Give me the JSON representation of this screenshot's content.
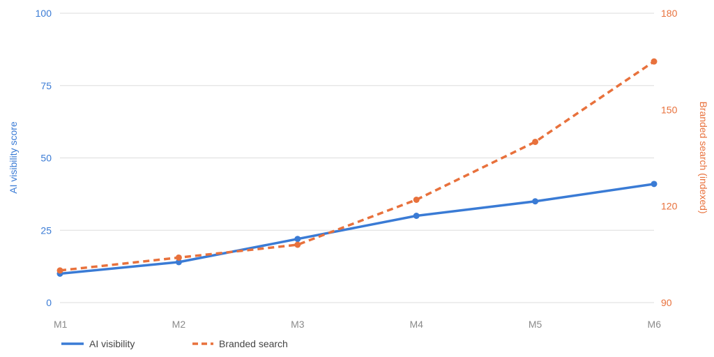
{
  "chart_data": {
    "type": "line",
    "categories": [
      "M1",
      "M2",
      "M3",
      "M4",
      "M5",
      "M6"
    ],
    "series": [
      {
        "name": "AI visibility",
        "axis": "left",
        "style": "solid",
        "color": "#3a7bd5",
        "values": [
          10,
          14,
          22,
          30,
          35,
          41
        ]
      },
      {
        "name": "Branded search",
        "axis": "right",
        "style": "dashed",
        "color": "#e8713c",
        "values": [
          100,
          104,
          108,
          122,
          140,
          165
        ]
      }
    ],
    "y_left": {
      "label": "AI visibility score",
      "range": [
        0,
        100
      ],
      "ticks": [
        "0",
        "25",
        "50",
        "75",
        "100"
      ]
    },
    "y_right": {
      "label": "Branded search (indexed)",
      "range": [
        90,
        180
      ],
      "ticks": [
        "90",
        "120",
        "150",
        "180"
      ]
    },
    "grid": true,
    "legend_position": "bottom-left"
  }
}
